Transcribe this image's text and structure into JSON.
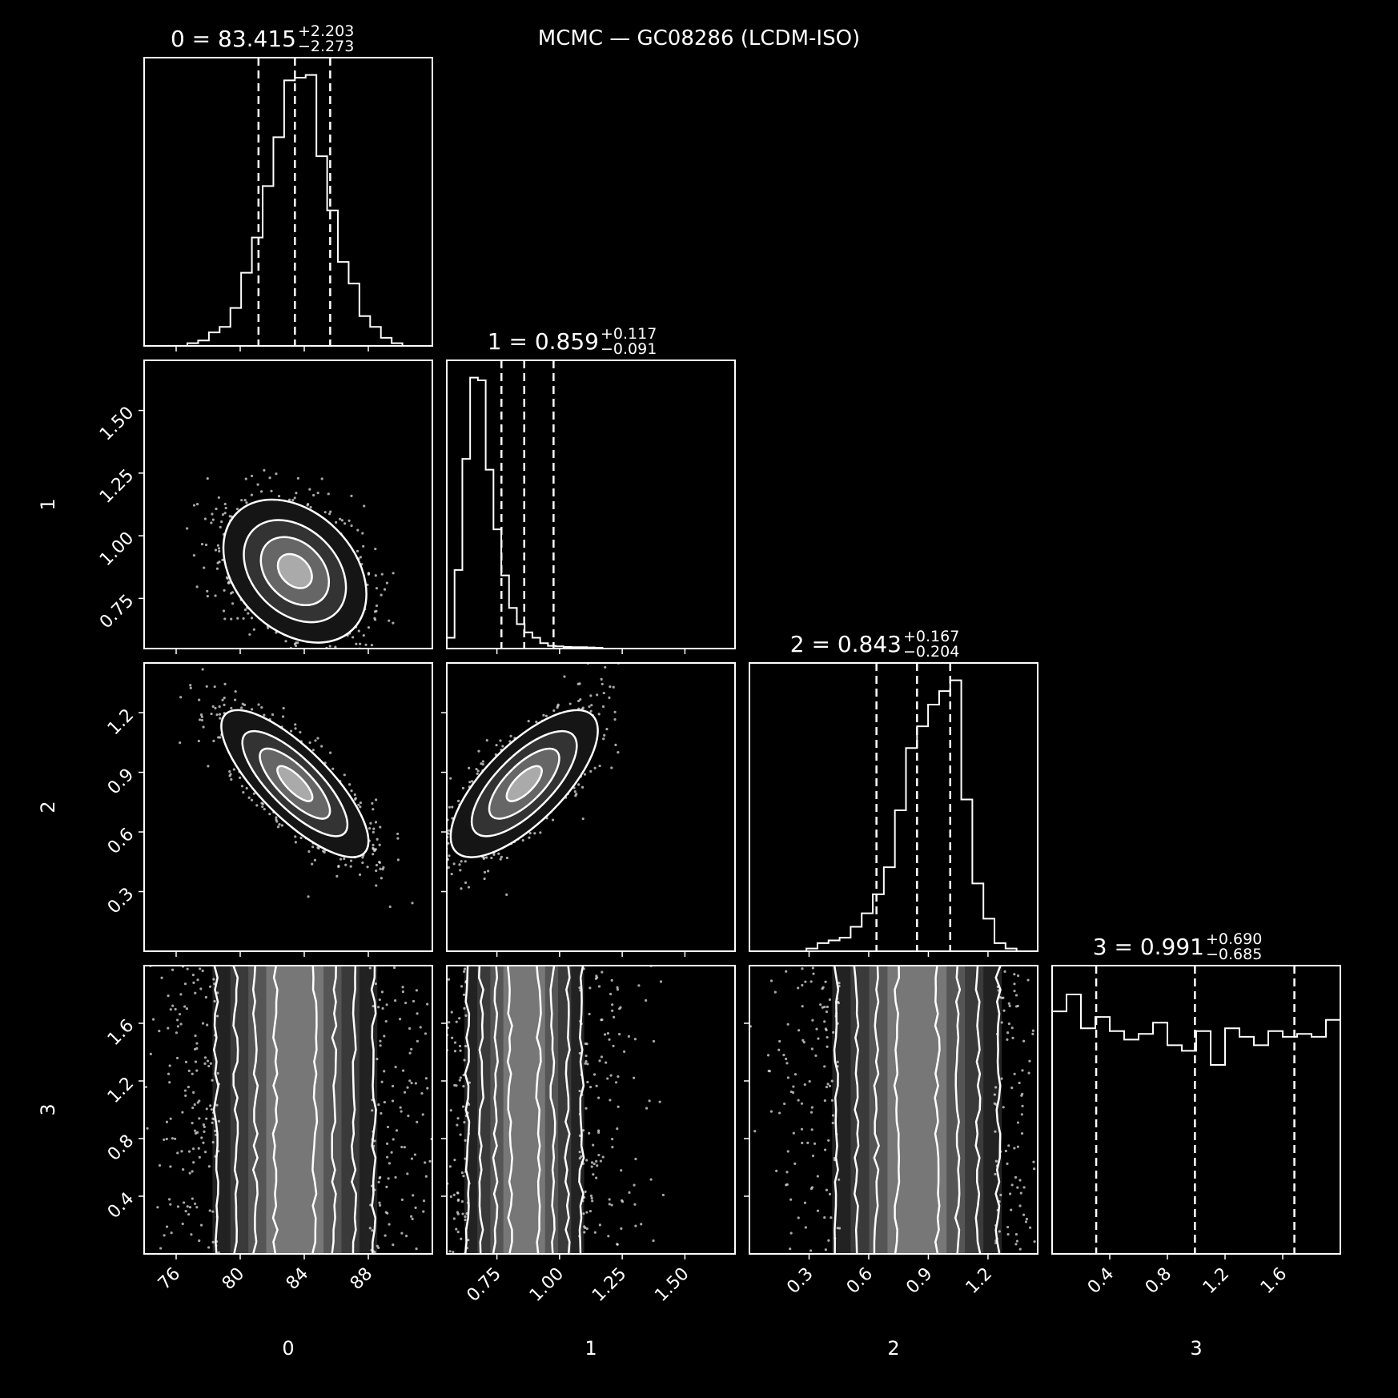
{
  "figure": {
    "title": "MCMC — GC08286 (LCDM-ISO)",
    "background": "#000000",
    "foreground": "#ffffff"
  },
  "chart_data": {
    "type": "corner",
    "parameters": [
      {
        "name": "0",
        "axis_label": "0",
        "range": [
          74.0,
          92.0
        ],
        "ticks": [
          76,
          80,
          84,
          88
        ],
        "tick_labels": [
          "76",
          "80",
          "84",
          "88"
        ],
        "median": 83.415,
        "plus": 2.203,
        "minus": 2.273,
        "title_main": "0 = 83.415",
        "title_plus": "+2.203",
        "title_minus": "−2.273",
        "quantiles": [
          81.142,
          83.415,
          85.618
        ],
        "hist": [
          0.01,
          0.02,
          0.05,
          0.07,
          0.14,
          0.27,
          0.4,
          0.59,
          0.77,
          0.98,
          0.99,
          1.0,
          0.7,
          0.5,
          0.31,
          0.23,
          0.11,
          0.07,
          0.03,
          0.01
        ]
      },
      {
        "name": "1",
        "axis_label": "1",
        "range": [
          0.55,
          1.7
        ],
        "ticks": [
          0.75,
          1.0,
          1.25,
          1.5
        ],
        "tick_labels": [
          "0.75",
          "1.00",
          "1.25",
          "1.50"
        ],
        "median": 0.859,
        "plus": 0.117,
        "minus": 0.091,
        "title_main": "1 = 0.859",
        "title_plus": "+0.117",
        "title_minus": "−0.091",
        "quantiles": [
          0.768,
          0.859,
          0.976
        ],
        "hist": [
          0.04,
          0.29,
          0.7,
          1.0,
          0.99,
          0.66,
          0.44,
          0.27,
          0.15,
          0.09,
          0.06,
          0.04,
          0.02,
          0.01,
          0.008,
          0.006,
          0.005,
          0.005,
          0.004,
          0.003
        ]
      },
      {
        "name": "2",
        "axis_label": "2",
        "range": [
          0.0,
          1.45
        ],
        "ticks": [
          0.3,
          0.6,
          0.9,
          1.2
        ],
        "tick_labels": [
          "0.3",
          "0.6",
          "0.9",
          "1.2"
        ],
        "median": 0.843,
        "plus": 0.167,
        "minus": 0.204,
        "title_main": "2 = 0.843",
        "title_plus": "+0.167",
        "title_minus": "−0.204",
        "quantiles": [
          0.639,
          0.843,
          1.01
        ],
        "hist": [
          0.01,
          0.03,
          0.04,
          0.05,
          0.09,
          0.14,
          0.21,
          0.31,
          0.52,
          0.75,
          0.83,
          0.91,
          0.96,
          1.0,
          0.56,
          0.25,
          0.12,
          0.03,
          0.01,
          0.0
        ]
      },
      {
        "name": "3",
        "axis_label": "3",
        "range": [
          0.0,
          2.0
        ],
        "ticks": [
          0.4,
          0.8,
          1.2,
          1.6
        ],
        "tick_labels": [
          "0.4",
          "0.8",
          "1.2",
          "1.6"
        ],
        "median": 0.991,
        "plus": 0.69,
        "minus": 0.685,
        "title_main": "3 = 0.991",
        "title_plus": "+0.690",
        "title_minus": "−0.685",
        "quantiles": [
          0.306,
          0.991,
          1.681
        ],
        "hist": [
          0.86,
          0.92,
          0.8,
          0.84,
          0.79,
          0.76,
          0.78,
          0.82,
          0.74,
          0.72,
          0.79,
          0.67,
          0.8,
          0.77,
          0.74,
          0.79,
          0.77,
          0.78,
          0.77,
          0.83
        ]
      }
    ],
    "correlations": {
      "1-0": -0.32,
      "2-0": -0.78,
      "2-1": 0.72,
      "3-0": 0.0,
      "3-1": 0.0,
      "3-2": 0.0
    },
    "contour_levels": [
      "0.5σ",
      "1σ",
      "1.5σ",
      "2σ"
    ],
    "quantile_lines": "dashed",
    "grid": false
  }
}
